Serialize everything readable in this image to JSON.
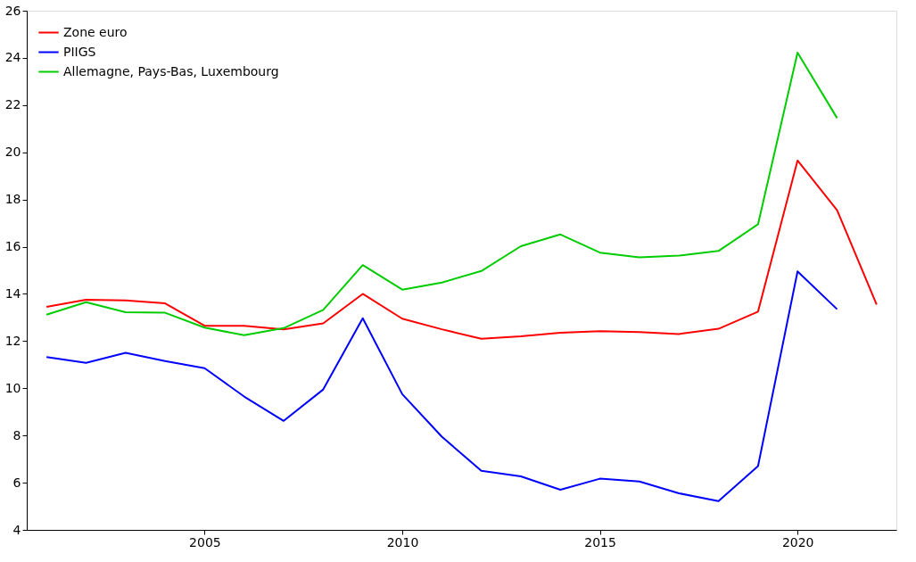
{
  "chart_data": {
    "type": "line",
    "x": [
      2001,
      2002,
      2003,
      2004,
      2005,
      2006,
      2007,
      2008,
      2009,
      2010,
      2011,
      2012,
      2013,
      2014,
      2015,
      2016,
      2017,
      2018,
      2019,
      2020,
      2021,
      2022
    ],
    "series": [
      {
        "name": "Zone euro",
        "color": "#ff0000",
        "values": [
          13.45,
          13.75,
          13.72,
          13.6,
          12.65,
          12.65,
          12.5,
          12.75,
          14.0,
          12.95,
          12.5,
          12.1,
          12.2,
          12.35,
          12.42,
          12.38,
          12.3,
          12.52,
          13.25,
          19.65,
          17.55,
          13.55
        ]
      },
      {
        "name": "PIIGS",
        "color": "#0000ff",
        "values": [
          11.32,
          11.08,
          11.5,
          11.15,
          10.85,
          9.65,
          8.62,
          9.95,
          12.97,
          9.75,
          7.95,
          6.5,
          6.27,
          5.7,
          6.17,
          6.05,
          5.55,
          5.22,
          6.7,
          14.95,
          13.35,
          null
        ]
      },
      {
        "name": "Allemagne, Pays-Bas, Luxembourg",
        "color": "#00cc00",
        "values": [
          13.12,
          13.65,
          13.22,
          13.2,
          12.57,
          12.25,
          12.55,
          13.32,
          15.22,
          14.18,
          14.48,
          14.97,
          16.02,
          16.52,
          15.75,
          15.55,
          15.62,
          15.82,
          16.95,
          24.22,
          21.45,
          null
        ]
      }
    ],
    "xlim": [
      2000.5,
      2022.5
    ],
    "xticks": [
      2005,
      2010,
      2015,
      2020
    ],
    "ylim": [
      4,
      26
    ],
    "yticks": [
      4,
      6,
      8,
      10,
      12,
      14,
      16,
      18,
      20,
      22,
      24,
      26
    ],
    "grid": false,
    "legend": "top left",
    "marker": "none",
    "line_style": "solid"
  }
}
